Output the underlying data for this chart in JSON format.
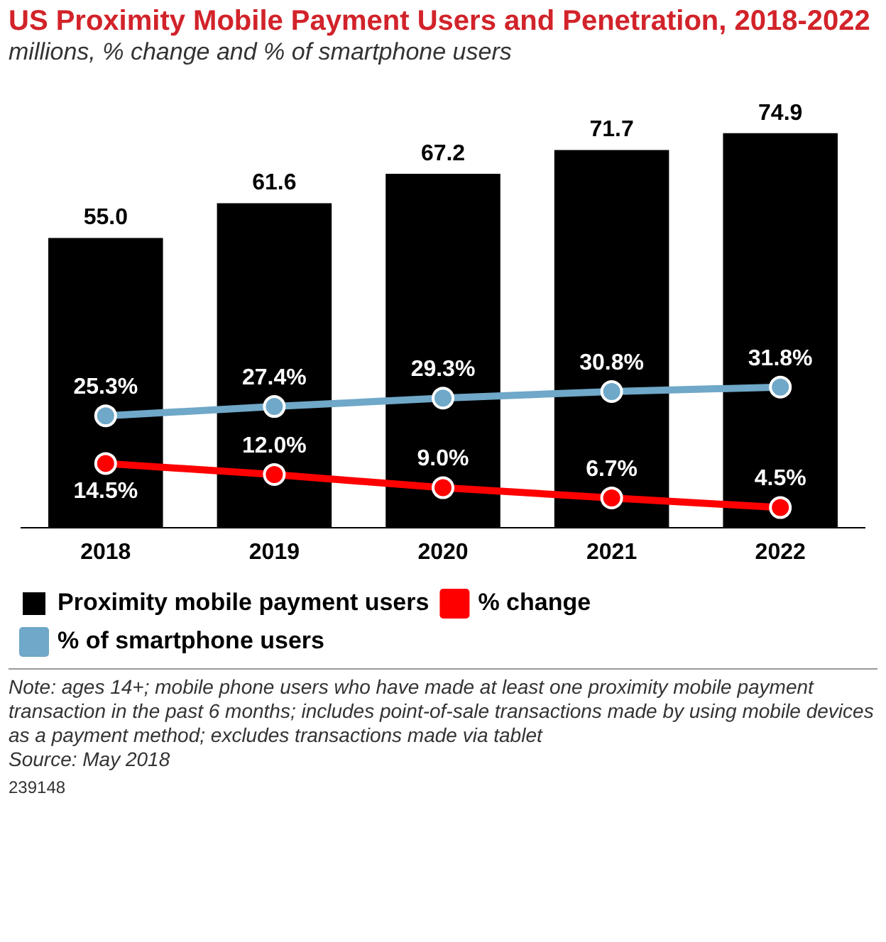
{
  "chart_data": {
    "type": "bar",
    "title": "US Proximity Mobile Payment Users and Penetration, 2018-2022",
    "subtitle": "millions, % change and % of smartphone users",
    "categories": [
      "2018",
      "2019",
      "2020",
      "2021",
      "2022"
    ],
    "series": [
      {
        "name": "Proximity mobile payment users",
        "color": "#000000",
        "values": [
          55.0,
          61.6,
          67.2,
          71.7,
          74.9
        ],
        "value_labels": [
          "55.0",
          "61.6",
          "67.2",
          "71.7",
          "74.9"
        ]
      },
      {
        "name": "% change",
        "type": "line",
        "axis": "y2",
        "color": "#ff0000",
        "values": [
          14.5,
          12.0,
          9.0,
          6.7,
          4.5
        ],
        "value_labels": [
          "14.5%",
          "12.0%",
          "9.0%",
          "6.7%",
          "4.5%"
        ]
      },
      {
        "name": "% of smartphone users",
        "type": "line",
        "axis": "y2",
        "color": "#6fa8c8",
        "values": [
          25.3,
          27.4,
          29.3,
          30.8,
          31.8
        ],
        "value_labels": [
          "25.3%",
          "27.4%",
          "29.3%",
          "30.8%",
          "31.8%"
        ]
      }
    ],
    "tick_labels": "x",
    "legend": "bottom",
    "marker": "circle",
    "grid": false,
    "annotations": [
      "Note: ages 14+; mobile phone users who have made at least one proximity mobile payment transaction in the past 6 months; includes point-of-sale transactions made by using mobile devices as a payment method; excludes transactions made via tablet",
      "Source: May 2018",
      "239148"
    ]
  }
}
